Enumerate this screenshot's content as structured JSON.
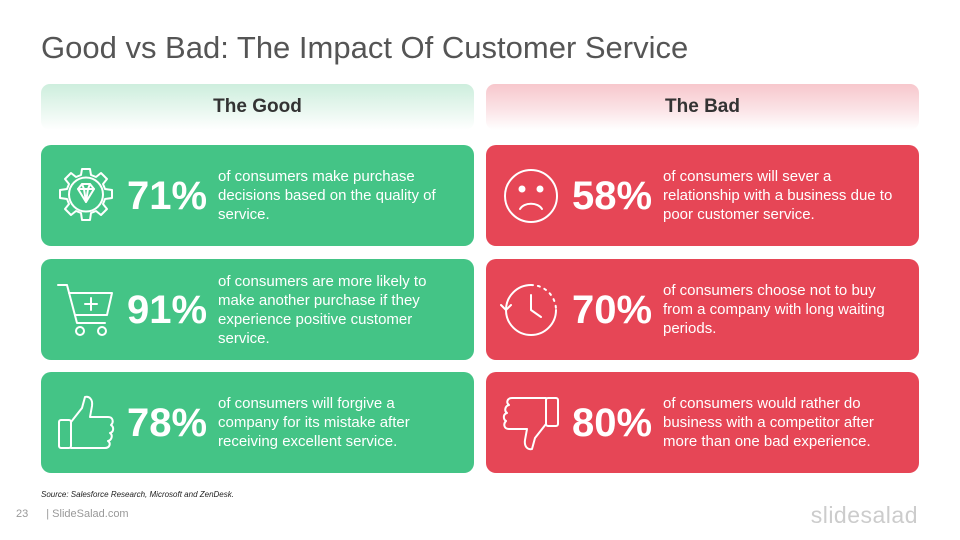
{
  "slide": {
    "title": "Good vs Bad: The Impact Of Customer Service",
    "source": "Source: Salesforce  Research, Microsoft  and ZenDesk.",
    "page_number": "23",
    "footer_site": "| SlideSalad.com",
    "brand": "slidesalad"
  },
  "columns": {
    "good": {
      "header": "The Good",
      "color": "#44c486",
      "items": [
        {
          "icon": "gear-diamond-icon",
          "percent": "71%",
          "text": "of consumers make purchase decisions based on the quality of service."
        },
        {
          "icon": "shopping-cart-icon",
          "percent": "91%",
          "text": "of consumers are more likely to make another purchase if they experience positive customer service."
        },
        {
          "icon": "thumbs-up-icon",
          "percent": "78%",
          "text": "of consumers will forgive a company for its mistake after receiving excellent service."
        }
      ]
    },
    "bad": {
      "header": "The Bad",
      "color": "#e64656",
      "items": [
        {
          "icon": "sad-face-icon",
          "percent": "58%",
          "text": "of consumers will sever a relationship with a business due to poor customer service."
        },
        {
          "icon": "clock-icon",
          "percent": "70%",
          "text": "of consumers choose not to buy from a company with long waiting periods."
        },
        {
          "icon": "thumbs-down-icon",
          "percent": "80%",
          "text": "of consumers would rather do business with a competitor after more than one bad experience."
        }
      ]
    }
  }
}
